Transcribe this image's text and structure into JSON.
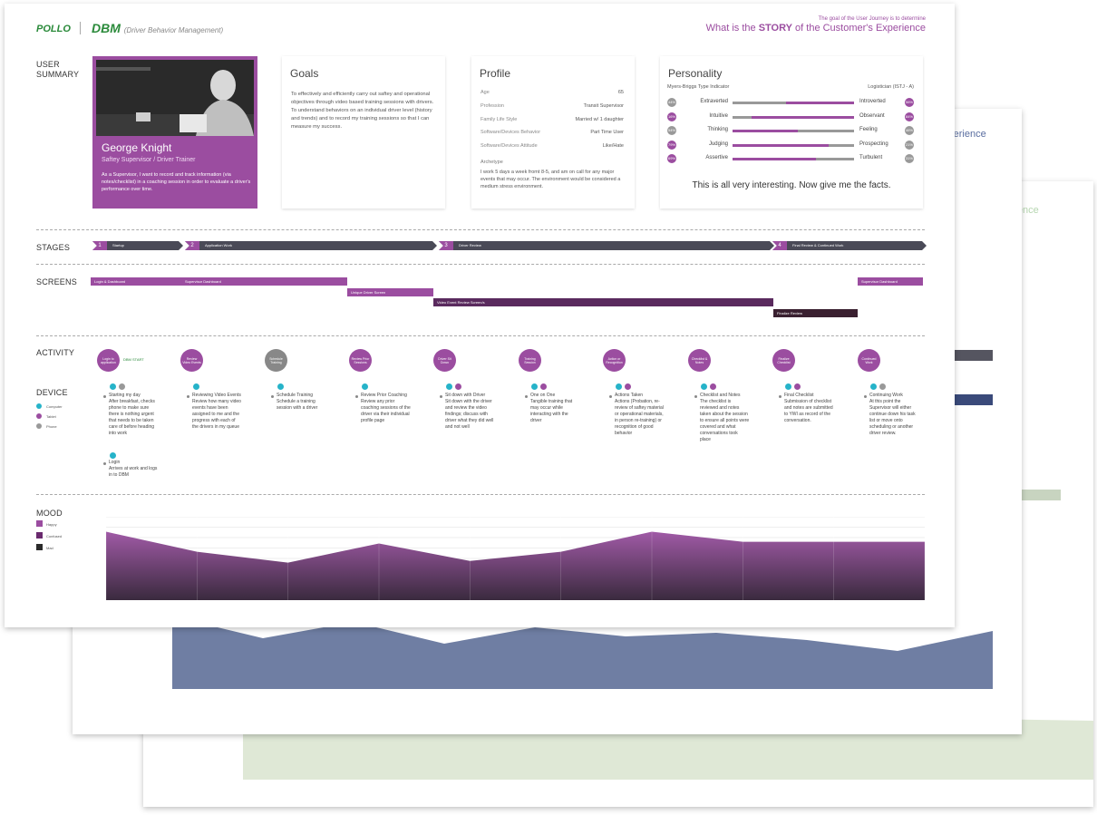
{
  "header": {
    "brand": "POLLO",
    "app": "DBM",
    "app_sub": "(Driver Behavior Management)",
    "tagline_small": "The goal of the User Journey is to determine",
    "tagline_pre": "What is the ",
    "tagline_bold": "STORY",
    "tagline_post": " of the Customer's Experience"
  },
  "sections": {
    "user_summary": "USER SUMMARY",
    "stages": "STAGES",
    "screens": "SCREENS",
    "activity": "ACTIVITY",
    "device": "DEVICE",
    "mood": "MOOD"
  },
  "persona": {
    "name": "George Knight",
    "role": "Saftey Supervisor / Driver Trainer",
    "quote": "As a Supervisor, I want to record and track information (via notes/checklist) in a coaching session in order to evaluate a driver's performance over time."
  },
  "goals": {
    "title": "Goals",
    "text": "To effectively and efficiently carry out saftey and operational objectives through video based training sessions with drivers. To understand behaviors on an individual driver level (history and trends) and to record my training sessions so that I can measure my success."
  },
  "profile": {
    "title": "Profile",
    "rows": [
      {
        "k": "Age",
        "v": "65"
      },
      {
        "k": "Profession",
        "v": "Transit Supervisor"
      },
      {
        "k": "Family Life Style",
        "v": "Married w/  1 daughter"
      },
      {
        "k": "Software/Devices Behavior",
        "v": "Part Time User"
      },
      {
        "k": "Software/Devices Attitude",
        "v": "Like/Hate"
      }
    ],
    "archetype_label": "Archetype",
    "archetype_text": "I work 5 days a week fromt 8-5, and am on call for any major events that may occur.  The environment would be considered  a medium stress environment."
  },
  "personality": {
    "title": "Personality",
    "indicator": "Myers-Briggs Type Indicator",
    "type": "Logistician (ISTJ - A)",
    "traits": [
      {
        "left": "Extraverted",
        "right": "Introverted",
        "lp": "44%",
        "rp": "56%",
        "fill": 0.56
      },
      {
        "left": "Intuitive",
        "right": "Observant",
        "lp": "16%",
        "rp": "84%",
        "fill": 0.84
      },
      {
        "left": "Thinking",
        "right": "Feeling",
        "lp": "54%",
        "rp": "46%",
        "fill": 0.54
      },
      {
        "left": "Judging",
        "right": "Prospecting",
        "lp": "79%",
        "rp": "21%",
        "fill": 0.79
      },
      {
        "left": "Assertive",
        "right": "Turbulent",
        "lp": "69%",
        "rp": "31%",
        "fill": 0.69
      }
    ],
    "facts": "This is all very interesting. Now give me the facts."
  },
  "stages": [
    {
      "n": "1",
      "label": "Startup"
    },
    {
      "n": "2",
      "label": "Application Work"
    },
    {
      "n": "3",
      "label": "Driver Review"
    },
    {
      "n": "4",
      "label": "Final Review & Continued Work"
    }
  ],
  "screens": [
    "Login & Dashboard",
    "Supervisor Dashboard",
    "Unique Driver Screen",
    "Video Event Review Screen/s",
    "Finalize Review",
    "Supervisor Dashboard"
  ],
  "activities": [
    {
      "circle": "Login to application",
      "text": "Starting my day\nAfter breakfast, checks phone to make sure there is nothing urgent that needs to be taken care of before heading into work"
    },
    {
      "circle": "Review Video Events",
      "text": "Reviewing Video Events\nReview how many video events have been assigned to me and the progress with each of the drivers in my queue"
    },
    {
      "circle": "Schedule Training",
      "text": "Schedule Training\nSchedule a training session with a driver"
    },
    {
      "circle": "Review Prior Sessions",
      "text": "Review Prior Coaching\nReview any prior coaching sessions of the driver via their individual profile page"
    },
    {
      "circle": "Driver Sit Down",
      "text": "Sit down with Driver\nSit down with the driver and review the video findings; discuss with driver what they did well and not well"
    },
    {
      "circle": "Training Session",
      "text": "One on One\nTangible training that may occur while interacting with the driver"
    },
    {
      "circle": "Action or Recognition",
      "text": "Actions Taken\nActions (Probation, re-review of saftey material or operational materials, in person re-training) or recognition of good behavior"
    },
    {
      "circle": "Checklist & Notes",
      "text": "Checklist and Notes\nThe checklist is reviewed and notes taken about the session to ensure all points were covered and what conversations took place"
    },
    {
      "circle": "Finalize Checklist",
      "text": "Final Checklist\nSubmission of checklist and notes are submitted to YWI as record of the conversation."
    },
    {
      "circle": "Continued Work",
      "text": "Continuing Work\nAt this point the Supervisor will either continue down his task list or move onto scheduling or another driver review."
    }
  ],
  "login_extra": "Login\nArrives at work and logs in to DBM",
  "dbm_start": "DBM START",
  "devices": [
    {
      "label": "Computer",
      "color": "#26b3c9"
    },
    {
      "label": "Tablet",
      "color": "#9b4da0"
    },
    {
      "label": "Phone",
      "color": "#999999"
    }
  ],
  "mood_legend": [
    {
      "label": "Happy",
      "color": "#9b4da0"
    },
    {
      "label": "Confused",
      "color": "#6a2a6e"
    },
    {
      "label": "Mad",
      "color": "#2b2b2b"
    }
  ],
  "mood_values": [
    0.82,
    0.58,
    0.45,
    0.68,
    0.47,
    0.58,
    0.82,
    0.7,
    0.7,
    0.7
  ],
  "colors": {
    "purple": "#9b4da0",
    "dark_purple": "#5a2a5e",
    "slate": "#4a4a57",
    "gray": "#999999",
    "teal": "#26b3c9",
    "green": "#2a8a3a"
  }
}
